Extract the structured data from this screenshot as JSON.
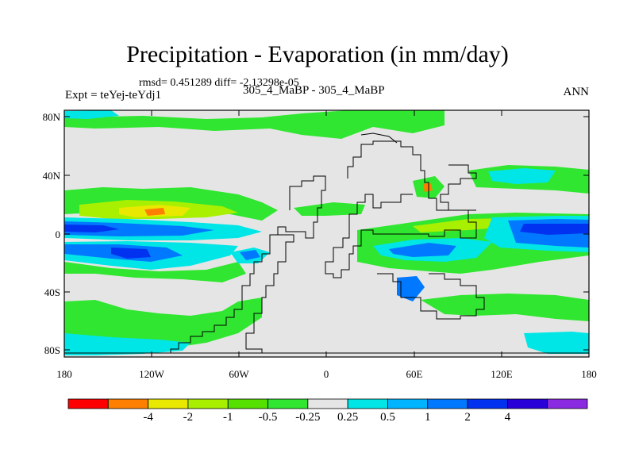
{
  "title": "Precipitation - Evaporation (in mm/day)",
  "stats": "rmsd= 0.451289 diff= -2.13298e-05",
  "experiment": "Expt = teYej-teYdj1",
  "case": "305_4_MaBP - 305_4_MaBP",
  "period": "ANN",
  "lat_ticks": [
    "80N",
    "40N",
    "0",
    "40S",
    "80S"
  ],
  "lon_ticks": [
    "180",
    "120W",
    "60W",
    "0",
    "60E",
    "120E",
    "180"
  ],
  "colorbar": {
    "colors": [
      "#ff0000",
      "#ff8000",
      "#e8e800",
      "#a8f000",
      "#55e000",
      "#30e630",
      "#e5e5e5",
      "#00e6e6",
      "#00b4ff",
      "#0078ff",
      "#0032f0",
      "#2a00d8",
      "#8a2be2"
    ],
    "labels": [
      "-4",
      "-2",
      "-1",
      "-0.5",
      "-0.25",
      "0.25",
      "0.5",
      "1",
      "2",
      "4"
    ]
  },
  "map_colors": {
    "background": "#e5e5e5",
    "green": "#30e630",
    "light_green": "#a8f000",
    "yellow": "#e8e800",
    "orange": "#ff8000",
    "red": "#ff3030",
    "cyan": "#00e6e6",
    "blue": "#0078ff",
    "dark_blue": "#0032f0",
    "coast": "#000000"
  }
}
